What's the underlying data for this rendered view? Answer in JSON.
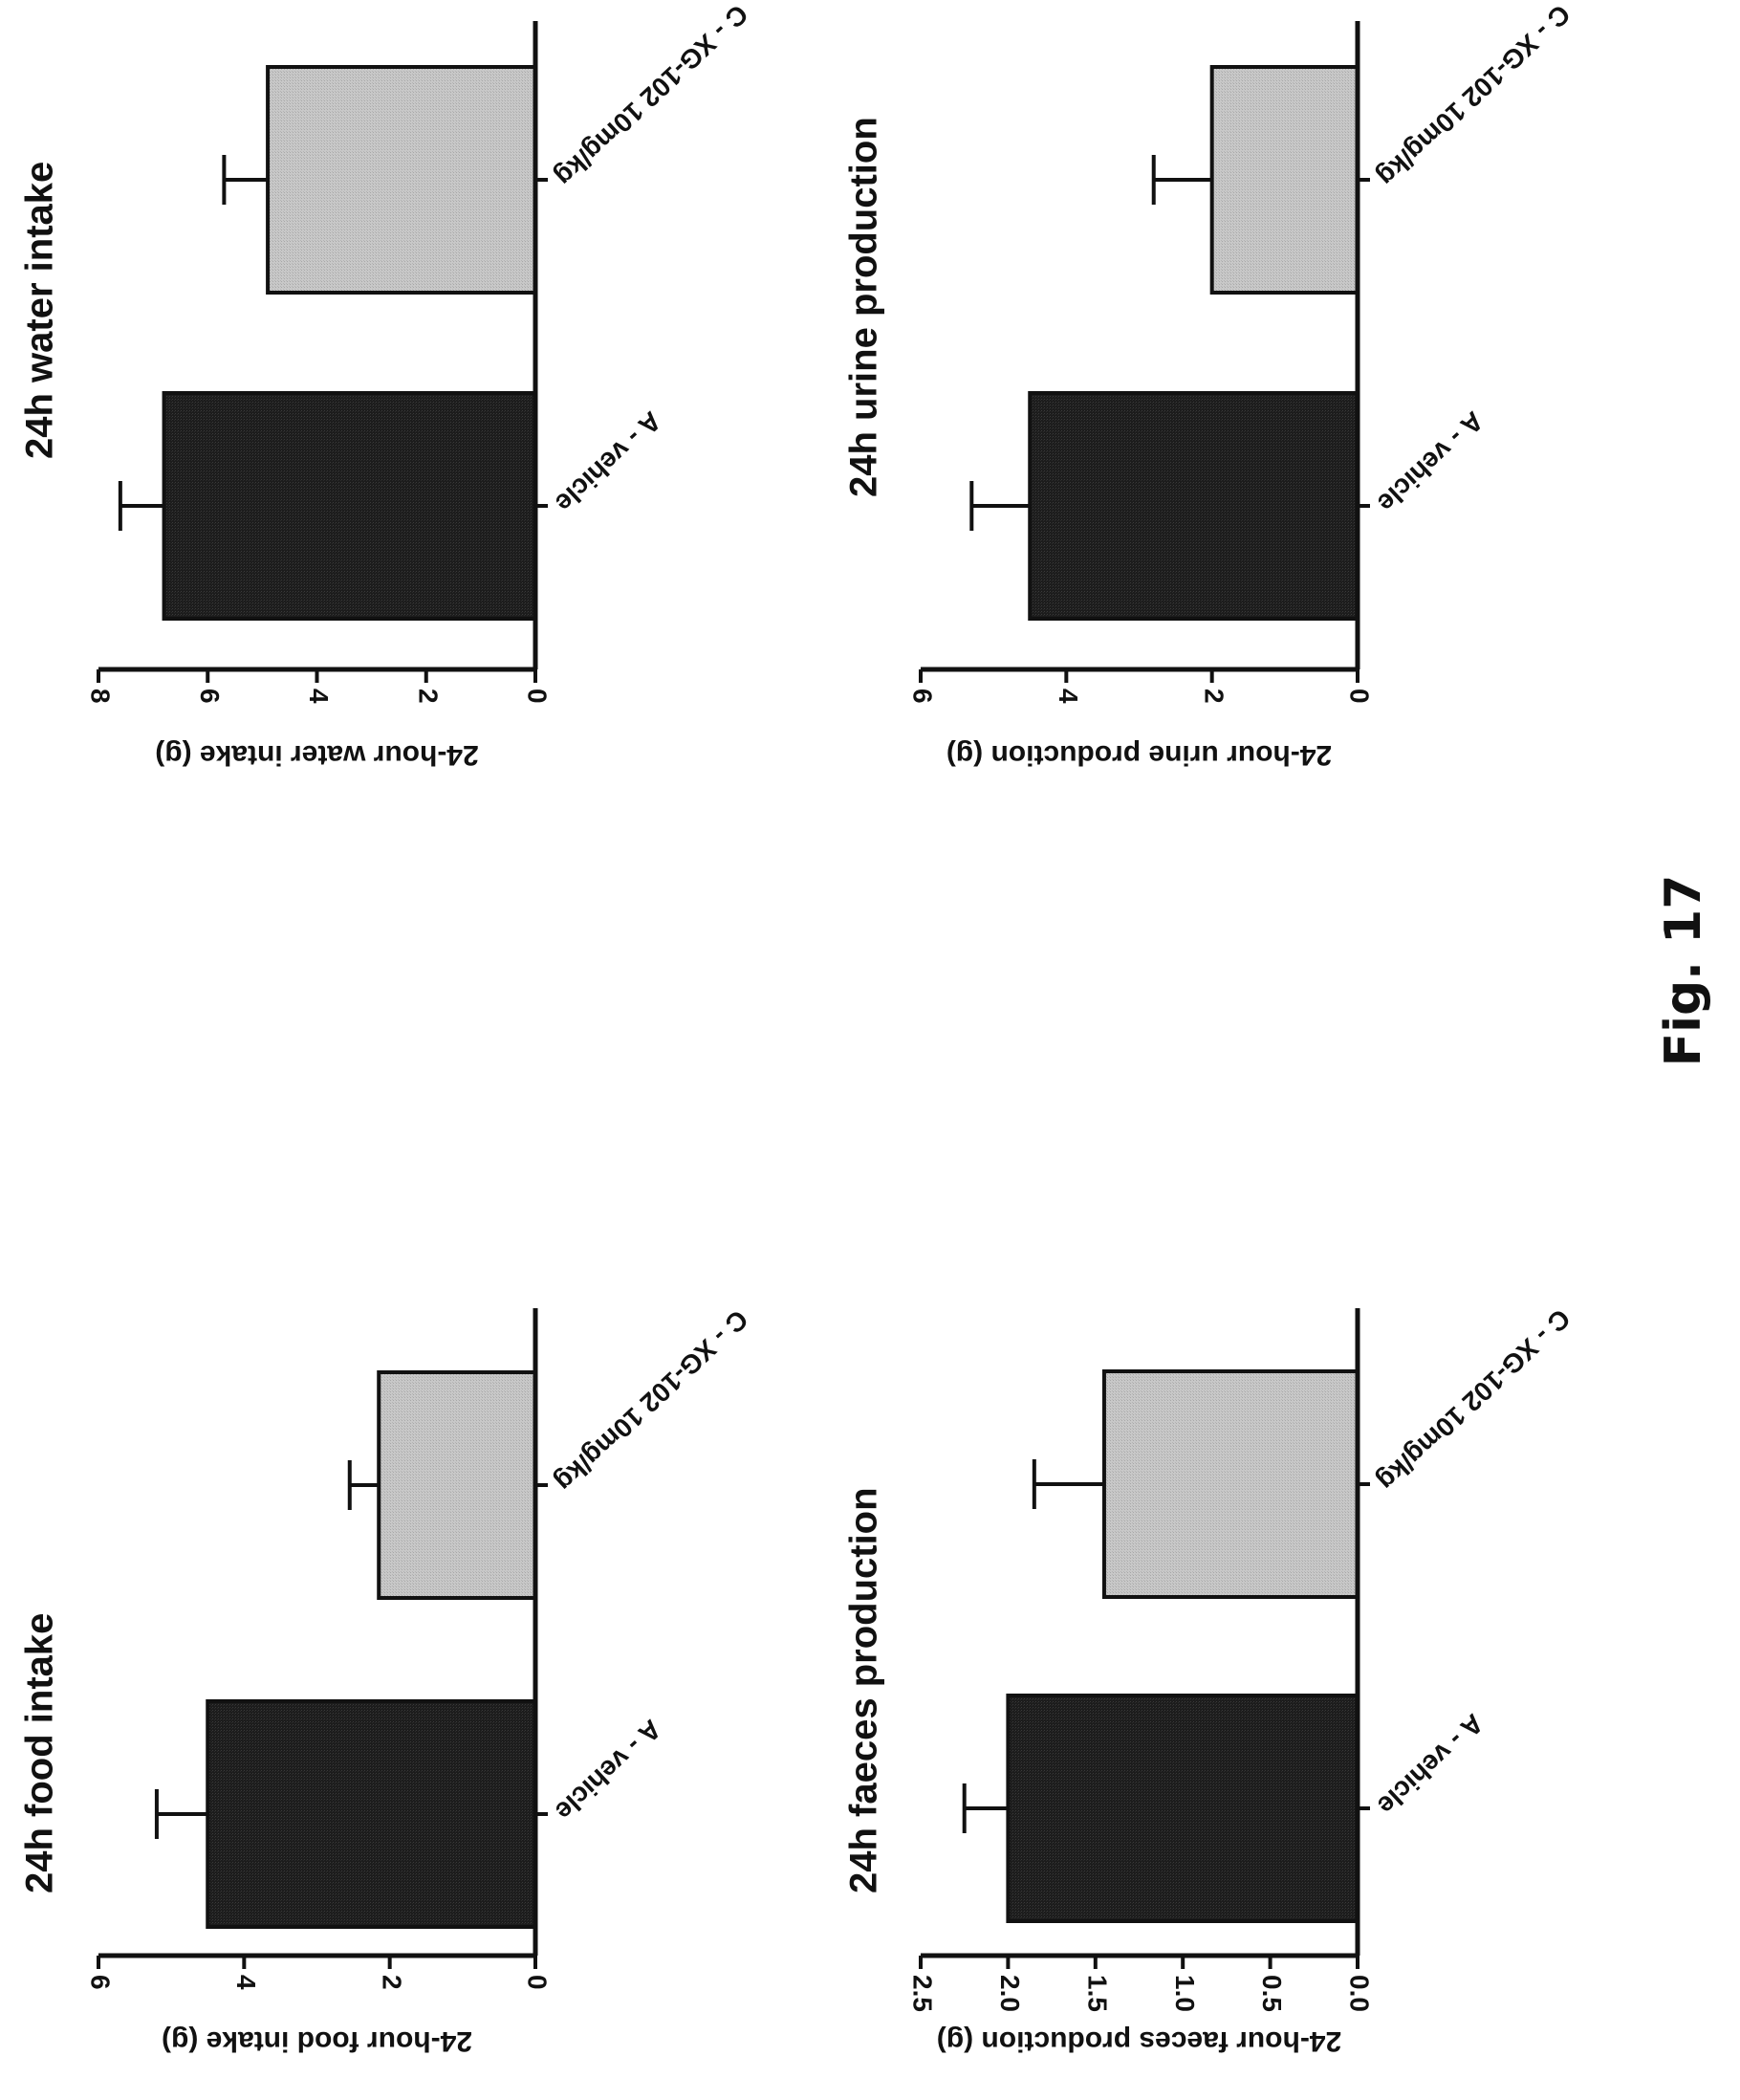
{
  "figure_caption": "Fig. 17",
  "colors": {
    "bar_dark": "#1c1c1c",
    "bar_light": "#c8c8c8",
    "axis": "#111111"
  },
  "chart_data": [
    {
      "type": "bar",
      "title": "24h food intake",
      "ylabel": "24-hour food intake (g)",
      "xlabel": "",
      "categories": [
        "A - vehicle",
        "C - XG-102 10mg/kg"
      ],
      "values": [
        4.5,
        2.15
      ],
      "errors": [
        0.7,
        0.4
      ],
      "ylim": [
        0,
        6
      ],
      "yticks": [
        "0",
        "2",
        "4",
        "6"
      ],
      "grid": false,
      "bar_colors": [
        "#1c1c1c",
        "#c8c8c8"
      ]
    },
    {
      "type": "bar",
      "title": "24h water intake",
      "ylabel": "24-hour water intake (g)",
      "xlabel": "",
      "categories": [
        "A - vehicle",
        "C - XG-102 10mg/kg"
      ],
      "values": [
        6.8,
        4.9
      ],
      "errors": [
        0.8,
        0.8
      ],
      "ylim": [
        0,
        8
      ],
      "yticks": [
        "0",
        "2",
        "4",
        "6",
        "8"
      ],
      "grid": false,
      "bar_colors": [
        "#1c1c1c",
        "#c8c8c8"
      ]
    },
    {
      "type": "bar",
      "title": "24h faeces production",
      "ylabel": "24-hour faeces production (g)",
      "xlabel": "",
      "categories": [
        "A - vehicle",
        "C - XG-102 10mg/kg"
      ],
      "values": [
        2.0,
        1.45
      ],
      "errors": [
        0.25,
        0.4
      ],
      "ylim": [
        0,
        2.5
      ],
      "yticks": [
        "0.0",
        "0.5",
        "1.0",
        "1.5",
        "2.0",
        "2.5"
      ],
      "grid": false,
      "bar_colors": [
        "#1c1c1c",
        "#c8c8c8"
      ]
    },
    {
      "type": "bar",
      "title": "24h urine production",
      "ylabel": "24-hour urine production (g)",
      "xlabel": "",
      "categories": [
        "A - vehicle",
        "C - XG-102 10mg/kg"
      ],
      "values": [
        4.5,
        2.0
      ],
      "errors": [
        0.8,
        0.8
      ],
      "ylim": [
        0,
        6
      ],
      "yticks": [
        "0",
        "2",
        "4",
        "6"
      ],
      "grid": false,
      "bar_colors": [
        "#1c1c1c",
        "#c8c8c8"
      ]
    }
  ]
}
